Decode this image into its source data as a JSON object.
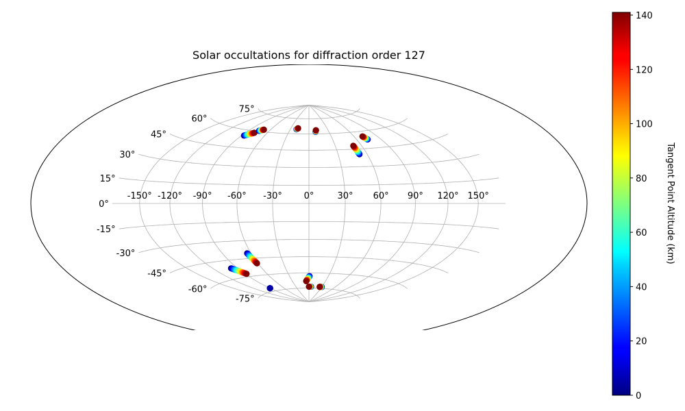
{
  "chart_data": {
    "type": "scatter",
    "projection": "hammer",
    "title": "Solar occultations for diffraction order 127",
    "xlabel": "",
    "ylabel": "",
    "xticks": [
      "-150°",
      "-120°",
      "-90°",
      "-60°",
      "-30°",
      "0°",
      "30°",
      "60°",
      "90°",
      "120°",
      "150°"
    ],
    "xtick_values": [
      -150,
      -120,
      -90,
      -60,
      -30,
      0,
      30,
      60,
      90,
      120,
      150
    ],
    "yticks": [
      "-75°",
      "-60°",
      "-45°",
      "-30°",
      "-15°",
      "0°",
      "15°",
      "30°",
      "45°",
      "60°",
      "75°"
    ],
    "ytick_values": [
      -75,
      -60,
      -45,
      -30,
      -15,
      0,
      15,
      30,
      45,
      60,
      75
    ],
    "grid": true,
    "colorbar": {
      "label": "Tangent Point Altitude (km)",
      "range": [
        0,
        141
      ],
      "ticks": [
        "0",
        "20",
        "40",
        "60",
        "80",
        "100",
        "120",
        "140"
      ],
      "tick_values": [
        0,
        20,
        40,
        60,
        80,
        100,
        120,
        140
      ],
      "colormap": "jet"
    },
    "tracks": [
      {
        "lon_start": -87,
        "lat_start": 55.2,
        "lon_end": -78,
        "lat_end": 58.5,
        "alt_start": 0,
        "alt_end": 141
      },
      {
        "lon_start": -75,
        "lat_start": 60.6,
        "lon_end": -70,
        "lat_end": 62,
        "alt_start": 0,
        "alt_end": 141
      },
      {
        "lon_start": -20,
        "lat_start": 64.3,
        "lon_end": -18,
        "lat_end": 65.3,
        "alt_start": 0,
        "alt_end": 141
      },
      {
        "lon_start": 10,
        "lat_start": 62,
        "lon_end": 11,
        "lat_end": 63.5,
        "alt_start": 0,
        "alt_end": 141
      },
      {
        "lon_start": 52,
        "lat_start": 40.5,
        "lon_end": 50.5,
        "lat_end": 48,
        "alt_start": 0,
        "alt_end": 141
      },
      {
        "lon_start": 73.5,
        "lat_start": 52.5,
        "lon_end": 71,
        "lat_end": 55.5,
        "alt_start": 0,
        "alt_end": 141
      },
      {
        "lon_start": -64,
        "lat_start": -40.5,
        "lon_end": -61,
        "lat_end": -49.5,
        "alt_start": 0,
        "alt_end": 141
      },
      {
        "lon_start": -98,
        "lat_start": -51.5,
        "lon_end": -88,
        "lat_end": -57.5,
        "alt_start": 0,
        "alt_end": 141
      },
      {
        "lon_start": -90,
        "lat_start": -72,
        "lon_end": -90,
        "lat_end": -72,
        "alt_start": 0,
        "alt_end": 5
      },
      {
        "lon_start": 1,
        "lat_start": -63,
        "lon_end": -5,
        "lat_end": -68,
        "alt_start": 0,
        "alt_end": 141
      },
      {
        "lon_start": 5,
        "lat_start": -73.5,
        "lon_end": 0,
        "lat_end": -73.5,
        "alt_start": 0,
        "alt_end": 141
      },
      {
        "lon_start": 30,
        "lat_start": -73.5,
        "lon_end": 25,
        "lat_end": -73.5,
        "alt_start": 0,
        "alt_end": 141
      }
    ]
  }
}
